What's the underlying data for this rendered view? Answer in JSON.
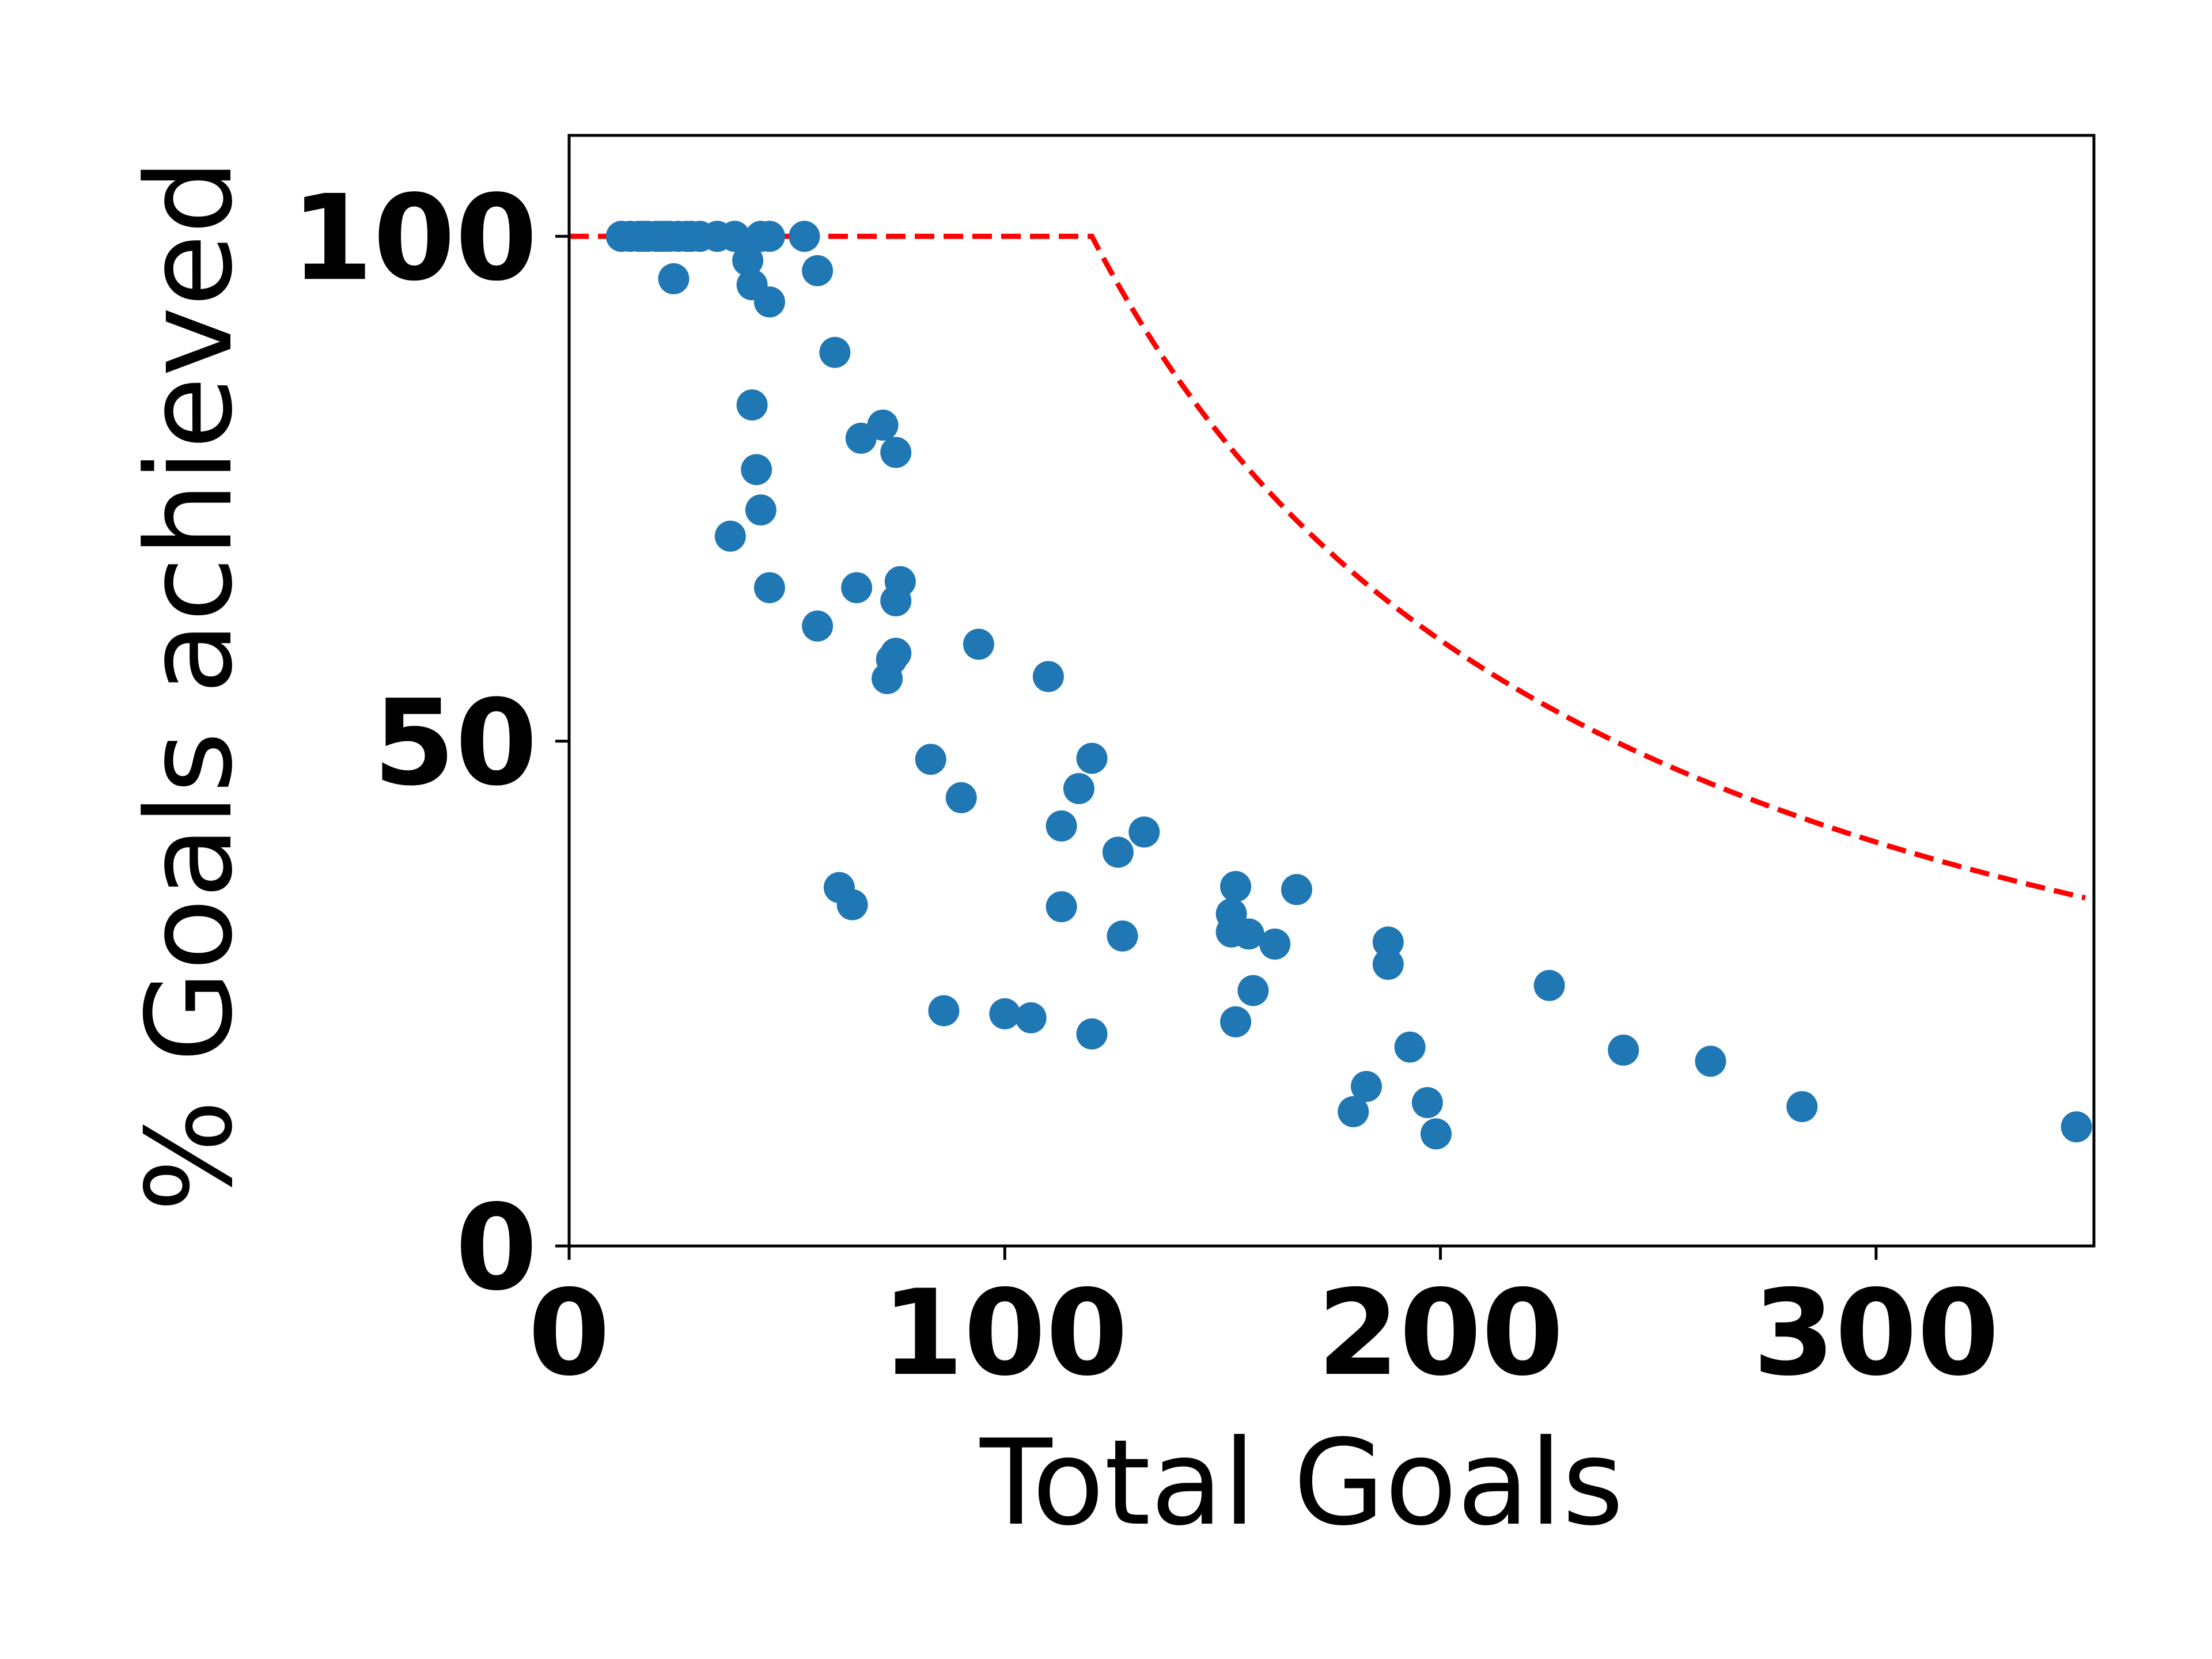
{
  "chart_data": {
    "type": "scatter",
    "title": "",
    "xlabel": "Total Goals",
    "ylabel": "% Goals achieved",
    "xlim": [
      0,
      350
    ],
    "ylim": [
      0,
      110
    ],
    "xticks": [
      0,
      100,
      200,
      300
    ],
    "xtick_labels": [
      "0",
      "100",
      "200",
      "300"
    ],
    "yticks": [
      0,
      50,
      100
    ],
    "ytick_labels": [
      "0",
      "50",
      "100"
    ],
    "grid": false,
    "legend": null,
    "colors": {
      "points": "#1f77b4",
      "reference_line": "#ff0000"
    },
    "series": [
      {
        "kind": "scatter",
        "points": [
          [
            12,
            100
          ],
          [
            14,
            100
          ],
          [
            16,
            100
          ],
          [
            17,
            100
          ],
          [
            18,
            100
          ],
          [
            20,
            100
          ],
          [
            21,
            100
          ],
          [
            22,
            100
          ],
          [
            23,
            100
          ],
          [
            25,
            100
          ],
          [
            27,
            100
          ],
          [
            28,
            100
          ],
          [
            30,
            100
          ],
          [
            34,
            100
          ],
          [
            38,
            100
          ],
          [
            44,
            100
          ],
          [
            46,
            100
          ],
          [
            54,
            100
          ],
          [
            24,
            95.8
          ],
          [
            41,
            97.6
          ],
          [
            42,
            95.2
          ],
          [
            46,
            93.5
          ],
          [
            57,
            96.6
          ],
          [
            61,
            88.5
          ],
          [
            42,
            83.3
          ],
          [
            67,
            80
          ],
          [
            72,
            81.3
          ],
          [
            75,
            78.6
          ],
          [
            43,
            76.9
          ],
          [
            44,
            72.9
          ],
          [
            37,
            70.3
          ],
          [
            46,
            65.2
          ],
          [
            66,
            65.2
          ],
          [
            76,
            65.8
          ],
          [
            75,
            63.9
          ],
          [
            57,
            61.4
          ],
          [
            94,
            59.6
          ],
          [
            75,
            58.7
          ],
          [
            74,
            58.1
          ],
          [
            73,
            56.2
          ],
          [
            110,
            56.4
          ],
          [
            83,
            48.2
          ],
          [
            120,
            48.3
          ],
          [
            117,
            45.3
          ],
          [
            90,
            44.4
          ],
          [
            113,
            41.6
          ],
          [
            132,
            41.0
          ],
          [
            126,
            39.0
          ],
          [
            62,
            35.5
          ],
          [
            65,
            33.8
          ],
          [
            113,
            33.6
          ],
          [
            127,
            30.7
          ],
          [
            153,
            35.6
          ],
          [
            152,
            32.9
          ],
          [
            152,
            31.1
          ],
          [
            156,
            30.9
          ],
          [
            162,
            29.9
          ],
          [
            167,
            35.3
          ],
          [
            188,
            30.1
          ],
          [
            188,
            27.9
          ],
          [
            157,
            25.3
          ],
          [
            153,
            22.2
          ],
          [
            86,
            23.3
          ],
          [
            100,
            23.0
          ],
          [
            106,
            22.6
          ],
          [
            120,
            21.0
          ],
          [
            225,
            25.8
          ],
          [
            242,
            19.4
          ],
          [
            262,
            18.3
          ],
          [
            193,
            19.7
          ],
          [
            183,
            15.8
          ],
          [
            180,
            13.3
          ],
          [
            197,
            14.2
          ],
          [
            199,
            11.1
          ],
          [
            283,
            13.8
          ],
          [
            346,
            11.8
          ]
        ]
      },
      {
        "kind": "dashed-line",
        "description_formula": "y = min(100, 12000 / x)"
      }
    ]
  }
}
